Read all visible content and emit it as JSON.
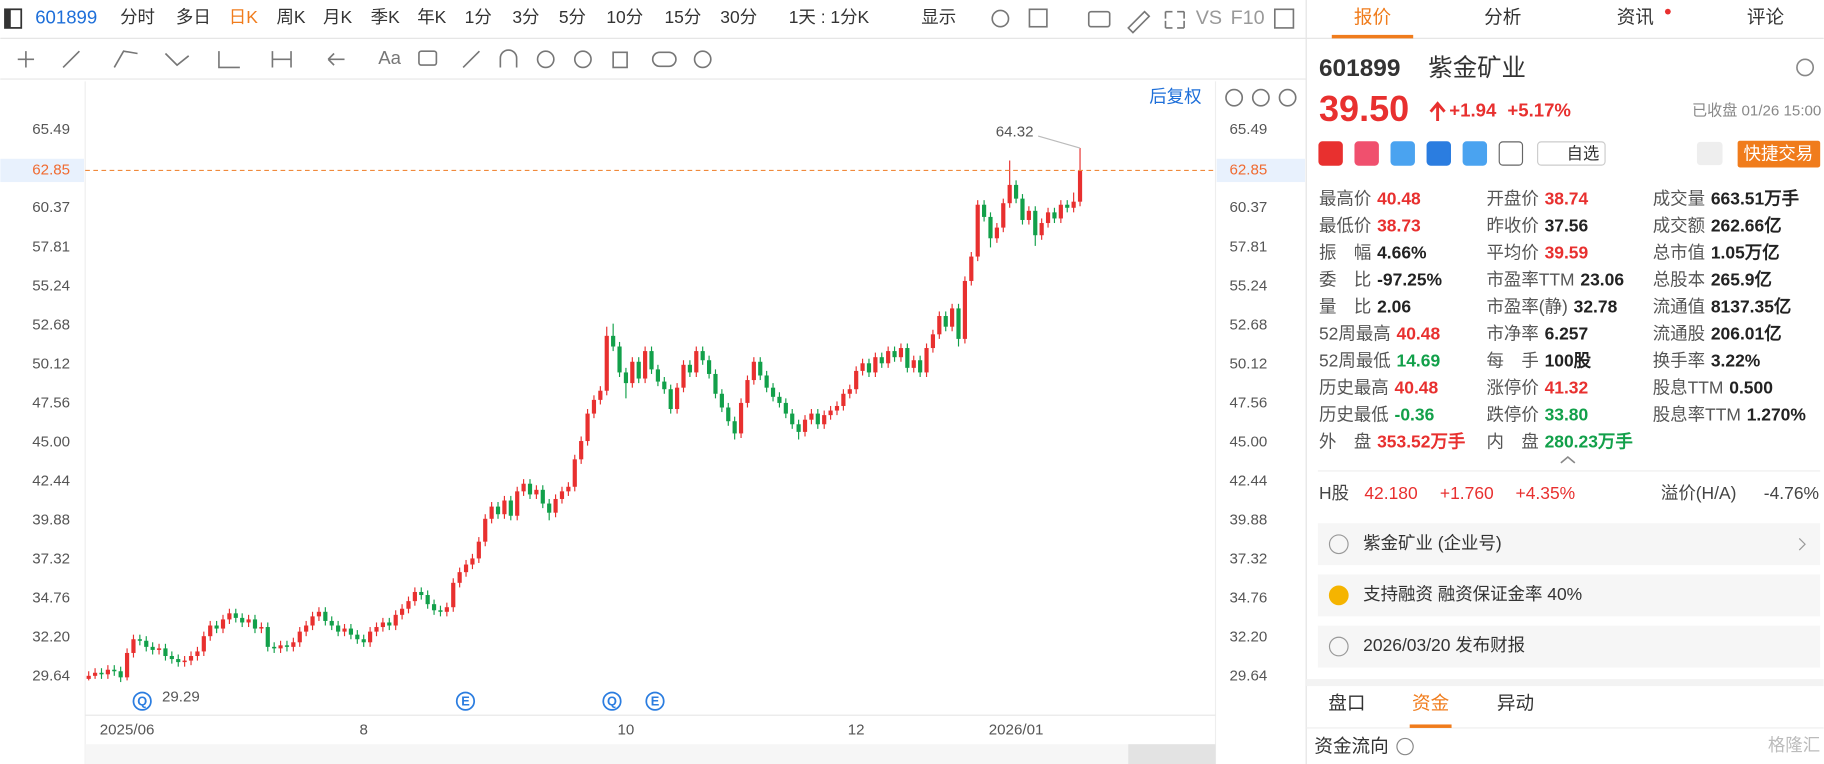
{
  "toolbar": {
    "code": "601899",
    "periods": [
      "分时",
      "多日",
      "日K",
      "周K",
      "月K",
      "季K",
      "年K",
      "1分",
      "3分",
      "5分",
      "10分",
      "15分",
      "30分"
    ],
    "active_period": 2,
    "range": "1天 : 1分K",
    "display": "显示",
    "vs": "VS",
    "f10": "F10",
    "font_tool": "Aa",
    "adjust": "后复权"
  },
  "chart_data": {
    "type": "candlestick",
    "categories": [
      null,
      null,
      null,
      null,
      null,
      null,
      "2025/06",
      null,
      null,
      null,
      null,
      null,
      null,
      null,
      null,
      null,
      null,
      null,
      null,
      null,
      null,
      null,
      null,
      null,
      null,
      null,
      null,
      null,
      null,
      null,
      null,
      null,
      null,
      null,
      null,
      null,
      null,
      null,
      null,
      null,
      null,
      null,
      null,
      "8",
      null,
      null,
      null,
      null,
      null,
      null,
      null,
      null,
      null,
      null,
      null,
      null,
      null,
      null,
      null,
      null,
      null,
      null,
      null,
      null,
      null,
      null,
      null,
      null,
      null,
      null,
      null,
      null,
      null,
      null,
      null,
      null,
      null,
      null,
      null,
      null,
      null,
      null,
      null,
      null,
      "10",
      null,
      null,
      null,
      null,
      null,
      null,
      null,
      null,
      null,
      null,
      null,
      null,
      null,
      null,
      null,
      null,
      null,
      null,
      null,
      null,
      null,
      null,
      null,
      null,
      null,
      null,
      null,
      null,
      null,
      null,
      null,
      null,
      null,
      null,
      null,
      "12",
      null,
      null,
      null,
      null,
      null,
      null,
      null,
      null,
      null,
      null,
      null,
      null,
      null,
      null,
      null,
      null,
      null,
      null,
      null,
      null,
      null,
      null,
      null,
      null,
      "2026/01",
      null,
      null,
      null,
      null,
      null,
      null,
      null,
      null,
      null,
      null
    ],
    "open": [
      29.5,
      29.7,
      29.9,
      29.8,
      30.1,
      30.0,
      29.6,
      31.2,
      32.1,
      32.0,
      31.6,
      31.4,
      31.5,
      31.0,
      30.8,
      30.6,
      30.7,
      31.0,
      31.3,
      32.3,
      33.0,
      32.8,
      33.4,
      33.8,
      33.5,
      33.2,
      33.4,
      32.8,
      32.9,
      31.6,
      31.5,
      31.7,
      31.6,
      31.9,
      32.6,
      33.0,
      33.6,
      33.9,
      33.3,
      33.0,
      32.6,
      32.8,
      32.4,
      32.1,
      31.9,
      32.6,
      32.9,
      33.2,
      33.0,
      33.7,
      34.1,
      34.6,
      35.2,
      35.0,
      34.4,
      34.0,
      33.9,
      34.2,
      35.8,
      36.5,
      37.0,
      37.4,
      38.5,
      40.0,
      40.8,
      40.3,
      41.2,
      40.2,
      41.8,
      42.3,
      41.6,
      41.9,
      41.0,
      40.4,
      41.3,
      41.8,
      42.1,
      43.9,
      45.1,
      46.9,
      47.8,
      48.4,
      52.0,
      51.3,
      49.6,
      48.9,
      50.3,
      49.2,
      51.0,
      49.8,
      49.0,
      48.5,
      47.2,
      48.6,
      50.1,
      49.6,
      51.0,
      50.4,
      49.5,
      48.2,
      47.3,
      46.4,
      45.6,
      47.6,
      49.1,
      50.3,
      49.4,
      48.6,
      48.0,
      47.6,
      46.9,
      46.2,
      45.7,
      46.5,
      46.9,
      46.2,
      46.8,
      47.1,
      47.4,
      48.2,
      48.5,
      49.7,
      50.2,
      49.6,
      50.6,
      50.2,
      51.0,
      50.6,
      51.2,
      49.9,
      50.4,
      49.6,
      51.2,
      52.1,
      53.3,
      52.6,
      53.8,
      51.8,
      55.6,
      57.2,
      60.6,
      59.8,
      58.4,
      59.1,
      60.7,
      61.9,
      61.0,
      59.6,
      60.2,
      58.6,
      59.4,
      60.1,
      59.7,
      60.6,
      60.4,
      60.8
    ],
    "high": [
      30.0,
      30.2,
      30.2,
      30.4,
      30.4,
      30.3,
      31.5,
      32.4,
      32.4,
      32.3,
      31.9,
      31.8,
      31.8,
      31.3,
      31.1,
      31.0,
      31.3,
      31.6,
      32.6,
      33.3,
      33.3,
      33.7,
      34.1,
      34.1,
      33.8,
      33.7,
      33.7,
      33.2,
      33.2,
      31.9,
      32.0,
      32.0,
      32.2,
      32.9,
      33.3,
      33.9,
      34.2,
      34.2,
      33.6,
      33.3,
      33.1,
      33.1,
      32.7,
      32.4,
      32.9,
      33.2,
      33.5,
      33.5,
      34.0,
      34.4,
      34.9,
      35.5,
      35.5,
      35.3,
      34.7,
      34.3,
      34.5,
      36.1,
      36.8,
      37.3,
      37.7,
      38.8,
      40.3,
      41.1,
      41.1,
      41.5,
      41.5,
      42.1,
      42.6,
      42.6,
      42.2,
      42.2,
      41.3,
      41.6,
      42.1,
      42.4,
      44.2,
      45.4,
      47.2,
      48.1,
      48.7,
      52.6,
      52.8,
      51.6,
      49.9,
      50.6,
      50.6,
      51.3,
      51.3,
      50.1,
      49.3,
      48.8,
      48.9,
      50.4,
      50.4,
      51.3,
      51.3,
      50.7,
      49.8,
      48.5,
      47.6,
      46.7,
      47.9,
      49.4,
      50.6,
      50.6,
      49.7,
      48.9,
      48.3,
      47.9,
      47.2,
      46.5,
      46.8,
      47.2,
      47.2,
      47.1,
      47.4,
      47.7,
      48.5,
      48.8,
      50.0,
      50.5,
      50.5,
      50.9,
      50.9,
      51.3,
      51.3,
      51.5,
      51.5,
      50.7,
      50.7,
      51.5,
      52.4,
      53.6,
      53.6,
      54.1,
      54.1,
      55.9,
      57.5,
      60.9,
      60.9,
      60.1,
      59.4,
      61.0,
      63.5,
      62.2,
      61.3,
      60.5,
      60.5,
      59.7,
      60.4,
      60.4,
      60.9,
      60.9,
      61.4,
      64.32
    ],
    "low": [
      29.4,
      29.5,
      29.5,
      29.5,
      29.7,
      29.29,
      29.4,
      30.9,
      31.7,
      31.3,
      31.1,
      31.1,
      30.7,
      30.5,
      30.3,
      30.3,
      30.4,
      30.7,
      31.0,
      32.0,
      32.5,
      32.5,
      33.1,
      33.2,
      32.9,
      32.9,
      32.5,
      32.5,
      31.3,
      31.2,
      31.2,
      31.3,
      31.3,
      31.6,
      32.3,
      32.7,
      33.3,
      33.0,
      32.7,
      32.3,
      32.3,
      32.1,
      31.8,
      31.6,
      31.6,
      32.3,
      32.6,
      32.7,
      32.7,
      33.4,
      33.8,
      34.3,
      34.7,
      34.1,
      33.7,
      33.6,
      33.6,
      33.9,
      35.5,
      36.2,
      36.7,
      37.1,
      38.2,
      39.7,
      40.0,
      40.0,
      39.9,
      39.9,
      41.5,
      41.3,
      41.3,
      40.7,
      39.9,
      40.1,
      41.0,
      41.5,
      41.8,
      43.6,
      44.8,
      46.6,
      47.5,
      48.1,
      51.0,
      49.3,
      47.9,
      48.6,
      48.9,
      48.9,
      49.5,
      48.7,
      48.2,
      46.9,
      46.9,
      48.3,
      49.3,
      49.3,
      50.1,
      49.2,
      47.9,
      47.0,
      46.1,
      45.2,
      45.3,
      47.3,
      48.8,
      49.1,
      48.3,
      47.7,
      47.3,
      46.6,
      45.9,
      45.2,
      45.4,
      46.2,
      45.9,
      45.9,
      46.5,
      46.8,
      47.1,
      47.9,
      48.2,
      49.4,
      49.3,
      49.3,
      49.9,
      49.9,
      50.3,
      50.3,
      49.6,
      49.6,
      49.3,
      49.3,
      50.9,
      51.8,
      52.3,
      52.3,
      51.3,
      51.5,
      55.3,
      56.9,
      59.5,
      57.8,
      58.1,
      58.8,
      60.4,
      60.7,
      59.3,
      59.3,
      57.9,
      58.3,
      59.1,
      59.4,
      59.4,
      60.1,
      60.1,
      60.5
    ],
    "close": [
      29.7,
      29.9,
      29.8,
      30.1,
      30.0,
      29.6,
      31.2,
      32.1,
      32.0,
      31.6,
      31.4,
      31.5,
      31.0,
      30.8,
      30.6,
      30.7,
      31.0,
      31.3,
      32.3,
      33.0,
      32.8,
      33.4,
      33.8,
      33.5,
      33.2,
      33.4,
      32.8,
      32.9,
      31.6,
      31.5,
      31.7,
      31.6,
      31.9,
      32.6,
      33.0,
      33.6,
      33.9,
      33.3,
      33.0,
      32.6,
      32.8,
      32.4,
      32.1,
      31.9,
      32.6,
      32.9,
      33.2,
      33.0,
      33.7,
      34.1,
      34.6,
      35.2,
      35.0,
      34.4,
      34.0,
      33.9,
      34.2,
      35.8,
      36.5,
      37.0,
      37.4,
      38.5,
      40.0,
      40.8,
      40.3,
      41.2,
      40.2,
      41.8,
      42.3,
      41.6,
      41.9,
      41.0,
      40.4,
      41.3,
      41.8,
      42.1,
      43.9,
      45.1,
      46.9,
      47.8,
      48.4,
      52.0,
      51.3,
      49.6,
      48.9,
      50.3,
      49.2,
      51.0,
      49.8,
      49.0,
      48.5,
      47.2,
      48.6,
      50.1,
      49.6,
      51.0,
      50.4,
      49.5,
      48.2,
      47.3,
      46.4,
      45.6,
      47.6,
      49.1,
      50.3,
      49.4,
      48.6,
      48.0,
      47.6,
      46.9,
      46.2,
      45.7,
      46.5,
      46.9,
      46.2,
      46.8,
      47.1,
      47.4,
      48.2,
      48.5,
      49.7,
      50.2,
      49.6,
      50.6,
      50.2,
      51.0,
      50.6,
      51.2,
      49.9,
      50.4,
      49.6,
      51.2,
      52.1,
      53.3,
      52.6,
      53.8,
      51.8,
      55.6,
      57.2,
      60.6,
      59.8,
      58.4,
      59.1,
      60.7,
      61.9,
      61.0,
      59.6,
      60.2,
      58.6,
      59.4,
      60.1,
      59.7,
      60.6,
      60.4,
      60.8,
      62.85
    ],
    "up_color": "#e8302f",
    "down_color": "#12a04a",
    "reference_color": "#f08a3c",
    "ylim": [
      27.12,
      66.63
    ],
    "yticks": [
      29.64,
      {
        "value": 32.2,
        "label": "32.20"
      },
      34.76,
      37.32,
      39.88,
      42.44,
      {
        "value": 45,
        "label": "45.00"
      },
      47.56,
      50.12,
      52.68,
      55.24,
      57.81,
      60.37,
      65.49
    ],
    "grid": false,
    "event_markers": [
      "Q",
      "E",
      "Q",
      "E"
    ]
  },
  "panel": {
    "tabs": [
      "报价",
      "分析",
      "资讯",
      "评论"
    ],
    "active_tab": 0,
    "code": "601899",
    "name": "紫金矿业",
    "price": "39.50",
    "change": "+1.94",
    "change_pct": "+5.17%",
    "status": "已收盘 01/26 15:00",
    "watch": "自选",
    "trade": "快捷交易",
    "stats": [
      [
        {
          "label": "最高价",
          "value": "40.48",
          "tone": "up"
        },
        {
          "label": "最低价",
          "value": "38.73",
          "tone": "up"
        },
        {
          "label": "振　幅",
          "value": "4.66%",
          "tone": "flat"
        },
        {
          "label": "委　比",
          "value": "-97.25%",
          "tone": "flat"
        },
        {
          "label": "量　比",
          "value": "2.06",
          "tone": "flat"
        },
        {
          "label": "52周最高",
          "value": "40.48",
          "tone": "up"
        },
        {
          "label": "52周最低",
          "value": "14.69",
          "tone": "down"
        },
        {
          "label": "历史最高",
          "value": "40.48",
          "tone": "up"
        },
        {
          "label": "历史最低",
          "value": "-0.36",
          "tone": "down"
        },
        {
          "label": "外　盘",
          "value": "353.52万手",
          "tone": "up"
        }
      ],
      [
        {
          "label": "开盘价",
          "value": "38.74",
          "tone": "up"
        },
        {
          "label": "昨收价",
          "value": "37.56",
          "tone": "flat"
        },
        {
          "label": "平均价",
          "value": "39.59",
          "tone": "up"
        },
        {
          "label": "市盈率TTM",
          "value": "23.06",
          "tone": "flat"
        },
        {
          "label": "市盈率(静)",
          "value": "32.78",
          "tone": "flat"
        },
        {
          "label": "市净率",
          "value": "6.257",
          "tone": "flat"
        },
        {
          "label": "每　手",
          "value": "100股",
          "tone": "flat"
        },
        {
          "label": "涨停价",
          "value": "41.32",
          "tone": "up"
        },
        {
          "label": "跌停价",
          "value": "33.80",
          "tone": "down"
        },
        {
          "label": "内　盘",
          "value": "280.23万手",
          "tone": "down"
        }
      ],
      [
        {
          "label": "成交量",
          "value": "663.51万手",
          "tone": "flat"
        },
        {
          "label": "成交额",
          "value": "262.66亿",
          "tone": "flat"
        },
        {
          "label": "总市值",
          "value": "1.05万亿",
          "tone": "flat"
        },
        {
          "label": "总股本",
          "value": "265.9亿",
          "tone": "flat"
        },
        {
          "label": "流通值",
          "value": "8137.35亿",
          "tone": "flat"
        },
        {
          "label": "流通股",
          "value": "206.01亿",
          "tone": "flat"
        },
        {
          "label": "换手率",
          "value": "3.22%",
          "tone": "flat"
        },
        {
          "label": "股息TTM",
          "value": "0.500",
          "tone": "flat"
        },
        {
          "label": "股息率TTM",
          "value": "1.270%",
          "tone": "flat"
        }
      ]
    ],
    "h_share": {
      "label": "H股",
      "price": "42.180",
      "change": "+1.760",
      "pct": "+4.35%",
      "premium_label": "溢价(H/A)",
      "premium": "-4.76%"
    },
    "cards": [
      "紫金矿业 (企业号)",
      "支持融资 融资保证金率 40%",
      "2026/03/20  发布财报"
    ],
    "bottom_tabs": [
      "盘口",
      "资金",
      "异动"
    ],
    "active_bottom_tab": 1,
    "flow_title": "资金流向",
    "watermark": "格隆汇"
  }
}
